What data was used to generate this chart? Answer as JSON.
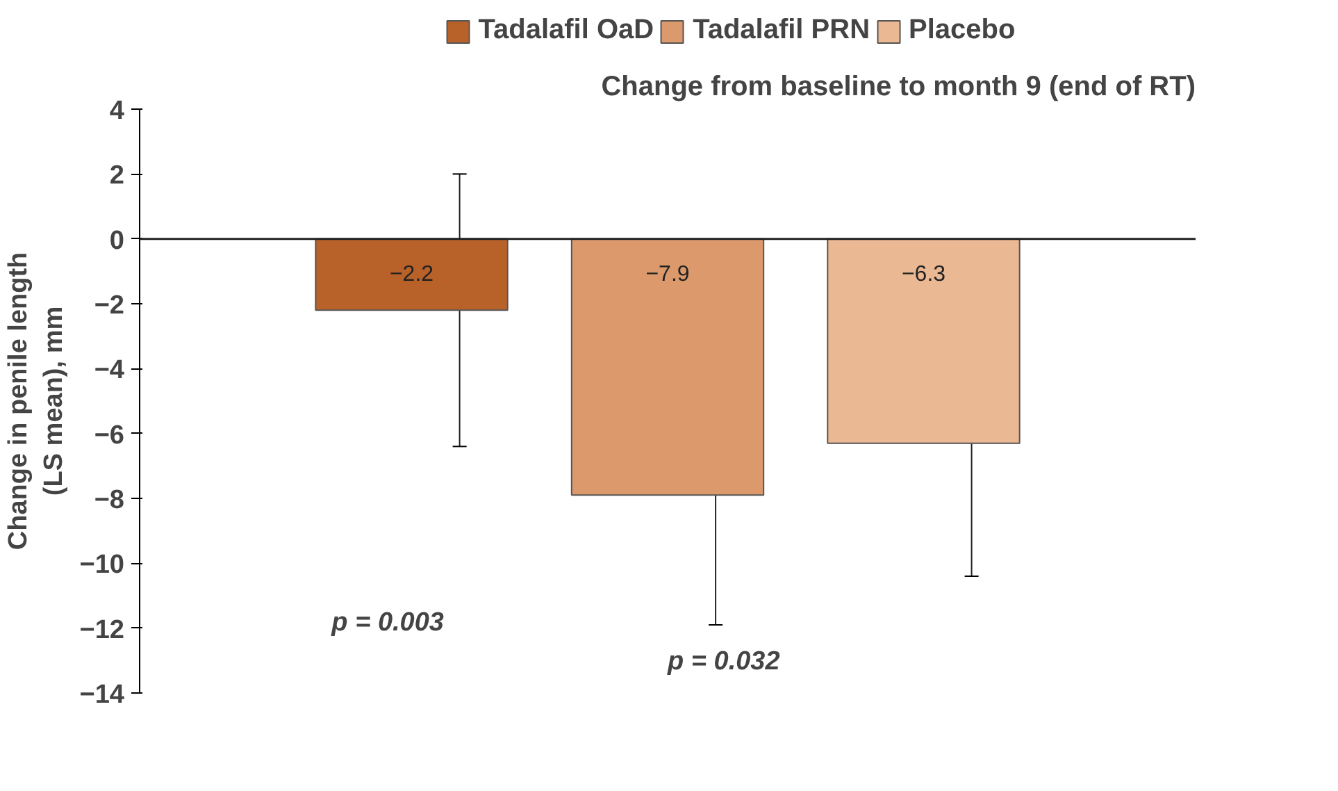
{
  "chart_data": {
    "type": "bar",
    "title": "Change from baseline to month 9 (end of RT)",
    "ylabel": "Change in penile length\n(LS mean), mm",
    "categories": [
      null
    ],
    "series": [
      {
        "name": "Tadalafil OaD",
        "color": "#b8622a",
        "values": [
          -2.2
        ],
        "errors": [
          4.2
        ]
      },
      {
        "name": "Tadalafil PRN",
        "color": "#dc9a6c",
        "values": [
          -7.9
        ],
        "errors": [
          4.0
        ]
      },
      {
        "name": "Placebo",
        "color": "#eab892",
        "values": [
          -6.3
        ],
        "errors": [
          4.1
        ]
      }
    ],
    "ylim": [
      -14,
      4
    ],
    "yticks": [
      -14,
      -12,
      -10,
      -8,
      -6,
      -4,
      -2,
      0,
      2,
      4
    ],
    "annotations": [
      "p = 0.003",
      "p = 0.032"
    ],
    "ref_lines": [
      {
        "axis": "y",
        "value": 0
      }
    ],
    "data_labels": true,
    "legend": "top",
    "grid": false
  }
}
